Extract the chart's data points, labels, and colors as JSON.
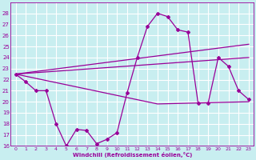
{
  "xlabel": "Windchill (Refroidissement éolien,°C)",
  "xlim": [
    -0.5,
    23.5
  ],
  "ylim": [
    16,
    29
  ],
  "yticks": [
    16,
    17,
    18,
    19,
    20,
    21,
    22,
    23,
    24,
    25,
    26,
    27,
    28
  ],
  "xticks": [
    0,
    1,
    2,
    3,
    4,
    5,
    6,
    7,
    8,
    9,
    10,
    11,
    12,
    13,
    14,
    15,
    16,
    17,
    18,
    19,
    20,
    21,
    22,
    23
  ],
  "background_color": "#c8eef0",
  "grid_color": "#ffffff",
  "line_color": "#990099",
  "zigzag": {
    "x": [
      0,
      1,
      2,
      3,
      4,
      5,
      6,
      7,
      8,
      9,
      10,
      11,
      12,
      13,
      14,
      15,
      16,
      17,
      18,
      19,
      20,
      21,
      22,
      23
    ],
    "y": [
      22.5,
      21.8,
      21.0,
      21.0,
      18.0,
      16.0,
      17.5,
      17.4,
      16.2,
      16.6,
      17.2,
      20.8,
      24.0,
      26.8,
      28.0,
      27.7,
      26.5,
      26.3,
      19.9,
      19.9,
      24.0,
      23.2,
      21.0,
      20.2
    ]
  },
  "line1": {
    "x": [
      0,
      23
    ],
    "y": [
      22.5,
      25.2
    ]
  },
  "line2": {
    "x": [
      0,
      23
    ],
    "y": [
      22.5,
      24.0
    ]
  },
  "line3": {
    "x": [
      0,
      14,
      23
    ],
    "y": [
      22.5,
      19.8,
      20.0
    ]
  }
}
